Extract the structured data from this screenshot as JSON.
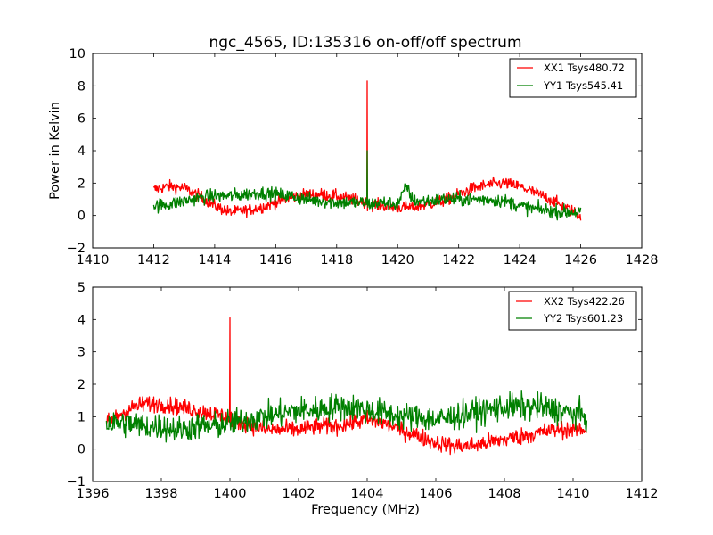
{
  "chart_data": [
    {
      "type": "line",
      "title": "ngc_4565, ID:135316 on-off/off spectrum",
      "xlabel": "",
      "ylabel": "Power in Kelvin",
      "xlim": [
        1410,
        1428
      ],
      "ylim": [
        -2,
        10
      ],
      "xticks": [
        "1410",
        "1412",
        "1414",
        "1416",
        "1418",
        "1420",
        "1422",
        "1424",
        "1426",
        "1428"
      ],
      "yticks": [
        "−2",
        "0",
        "2",
        "4",
        "6",
        "8",
        "10"
      ],
      "xtick_values": [
        1410,
        1412,
        1414,
        1416,
        1418,
        1420,
        1422,
        1424,
        1426,
        1428
      ],
      "ytick_values": [
        -2,
        0,
        2,
        4,
        6,
        8,
        10
      ],
      "legend_position": "top-right",
      "grid": false,
      "series": [
        {
          "name": "XX1 Tsys480.72",
          "color": "#ff0000",
          "noise": 0.35,
          "x": [
            1412,
            1412.5,
            1413,
            1413.5,
            1414,
            1414.5,
            1415,
            1415.5,
            1416,
            1416.5,
            1417,
            1417.5,
            1418,
            1418.5,
            1418.95,
            1419.0,
            1419.05,
            1419.5,
            1420,
            1420.5,
            1421,
            1421.5,
            1422,
            1422.5,
            1423,
            1423.5,
            1424,
            1424.5,
            1425,
            1425.5,
            1426
          ],
          "y": [
            1.6,
            1.8,
            1.7,
            1.2,
            0.6,
            0.2,
            0.3,
            0.5,
            0.8,
            1.1,
            1.3,
            1.3,
            1.2,
            1.0,
            0.8,
            8.3,
            0.7,
            0.6,
            0.5,
            0.5,
            0.7,
            0.9,
            1.3,
            1.7,
            1.9,
            2.0,
            1.8,
            1.4,
            1.0,
            0.5,
            0.0
          ]
        },
        {
          "name": "YY1 Tsys545.41",
          "color": "#008000",
          "noise": 0.4,
          "x": [
            1412,
            1412.5,
            1413,
            1413.5,
            1414,
            1414.5,
            1415,
            1415.5,
            1416,
            1416.5,
            1417,
            1417.5,
            1418,
            1418.5,
            1418.95,
            1419.0,
            1419.05,
            1419.5,
            1420,
            1420.3,
            1420.5,
            1421,
            1421.5,
            1422,
            1422.5,
            1423,
            1423.5,
            1424,
            1424.5,
            1425,
            1425.5,
            1426
          ],
          "y": [
            0.6,
            0.7,
            0.9,
            1.1,
            1.2,
            1.2,
            1.3,
            1.4,
            1.3,
            1.2,
            1.0,
            0.9,
            0.8,
            0.8,
            0.8,
            4.0,
            0.7,
            0.8,
            0.7,
            1.8,
            0.9,
            0.9,
            1.0,
            1.0,
            1.0,
            1.0,
            0.9,
            0.6,
            0.4,
            0.3,
            0.2,
            0.2
          ]
        }
      ]
    },
    {
      "type": "line",
      "title": "",
      "xlabel": "Frequency (MHz)",
      "ylabel": "",
      "xlim": [
        1396,
        1412
      ],
      "ylim": [
        -1,
        5
      ],
      "xticks": [
        "1396",
        "1398",
        "1400",
        "1402",
        "1404",
        "1406",
        "1408",
        "1410",
        "1412"
      ],
      "yticks": [
        "−1",
        "0",
        "1",
        "2",
        "3",
        "4",
        "5"
      ],
      "xtick_values": [
        1396,
        1398,
        1400,
        1402,
        1404,
        1406,
        1408,
        1410,
        1412
      ],
      "ytick_values": [
        -1,
        0,
        1,
        2,
        3,
        4,
        5
      ],
      "legend_position": "top-right",
      "grid": false,
      "series": [
        {
          "name": "XX2 Tsys422.26",
          "color": "#ff0000",
          "noise": 0.25,
          "x": [
            1396.4,
            1397,
            1397.5,
            1398,
            1398.5,
            1399,
            1399.5,
            1399.97,
            1400.0,
            1400.03,
            1400.5,
            1401,
            1401.5,
            1402,
            1402.5,
            1403,
            1403.5,
            1404,
            1404.5,
            1405,
            1405.5,
            1406,
            1406.5,
            1407,
            1407.5,
            1408,
            1408.5,
            1409,
            1409.5,
            1410,
            1410.4
          ],
          "y": [
            0.8,
            1.2,
            1.4,
            1.4,
            1.3,
            1.2,
            1.1,
            1.0,
            4.05,
            0.9,
            0.8,
            0.6,
            0.6,
            0.6,
            0.7,
            0.7,
            0.8,
            0.9,
            0.8,
            0.6,
            0.4,
            0.2,
            0.1,
            0.1,
            0.2,
            0.3,
            0.4,
            0.5,
            0.6,
            0.6,
            0.6
          ]
        },
        {
          "name": "YY2 Tsys601.23",
          "color": "#008000",
          "noise": 0.4,
          "x": [
            1396.4,
            1397,
            1397.5,
            1398,
            1398.5,
            1399,
            1399.5,
            1400,
            1400.5,
            1401,
            1401.5,
            1402,
            1402.5,
            1403,
            1403.5,
            1404,
            1404.5,
            1405,
            1405.5,
            1406,
            1406.5,
            1407,
            1407.5,
            1408,
            1408.5,
            1409,
            1409.5,
            1410,
            1410.4
          ],
          "y": [
            0.8,
            0.8,
            0.7,
            0.7,
            0.6,
            0.7,
            0.7,
            0.8,
            0.9,
            1.0,
            1.1,
            1.2,
            1.2,
            1.3,
            1.3,
            1.2,
            1.1,
            1.0,
            1.0,
            0.9,
            1.0,
            1.1,
            1.2,
            1.3,
            1.3,
            1.3,
            1.2,
            1.1,
            1.0
          ]
        }
      ]
    }
  ]
}
